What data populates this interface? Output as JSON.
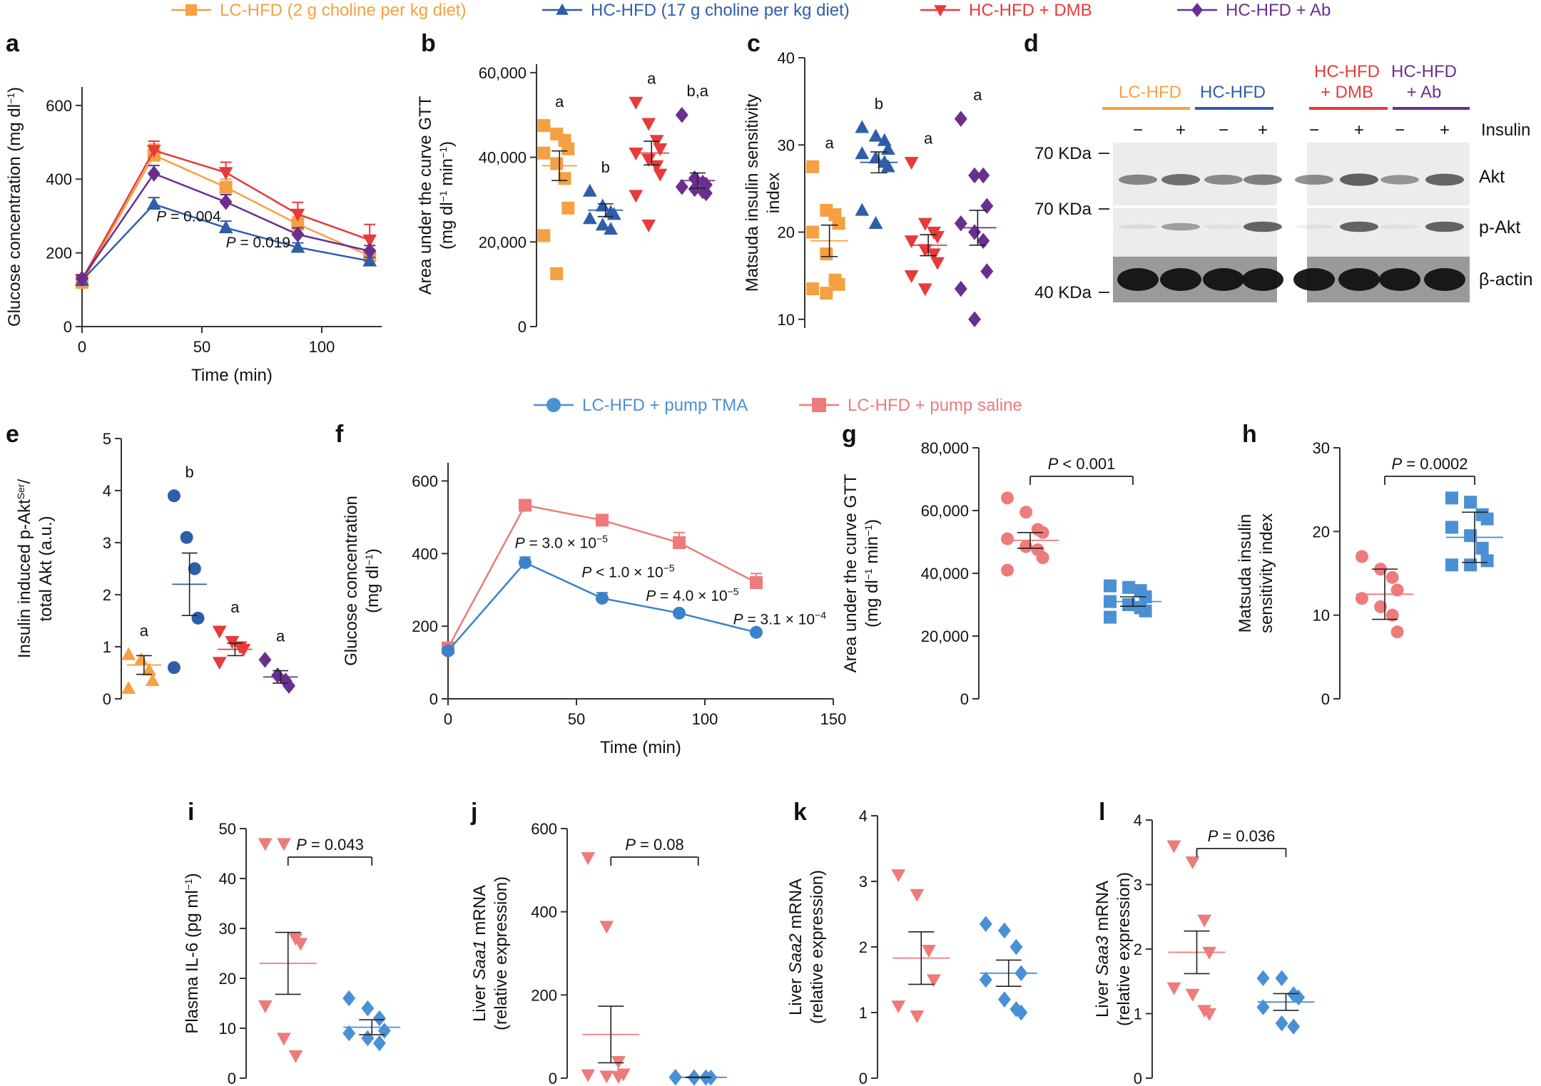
{
  "colors": {
    "lc": "#f5a043",
    "hc": "#2f5ea8",
    "dmb": "#e83a3a",
    "ab": "#6a2f8e",
    "tma": "#4a90d4",
    "saline": "#ee7b7b",
    "tma_point": "#3b82c8",
    "axis": "#333333",
    "blot_bg": "#ececec",
    "blot_band": "#3a3a3a",
    "blot_band_dark": "#111111"
  },
  "legend_top": [
    {
      "label": "LC-HFD (2 g choline per kg diet)",
      "color_key": "lc",
      "marker": "square"
    },
    {
      "label": "HC-HFD (17 g choline per kg diet)",
      "color_key": "hc",
      "marker": "triangle"
    },
    {
      "label": "HC-HFD + DMB",
      "color_key": "dmb",
      "marker": "triangle-down"
    },
    {
      "label": "HC-HFD + Ab",
      "color_key": "ab",
      "marker": "diamond"
    }
  ],
  "legend_mid": [
    {
      "label": "LC-HFD + pump TMA",
      "color_key": "tma",
      "marker": "circle"
    },
    {
      "label": "LC-HFD + pump saline",
      "color_key": "saline",
      "marker": "square"
    }
  ],
  "chart_data": [
    {
      "panel": "a",
      "type": "line",
      "xlabel": "Time (min)",
      "ylabel": "Glucose concentration (mg dl",
      "ylabel_sup": "−1",
      "ylabel_tail": ")",
      "xlim": [
        0,
        125
      ],
      "ylim": [
        0,
        650
      ],
      "xticks": [
        0,
        50,
        100
      ],
      "yticks": [
        0,
        200,
        400,
        600
      ],
      "x": [
        0,
        30,
        60,
        90,
        120
      ],
      "series": [
        {
          "name": "LC-HFD",
          "color_key": "lc",
          "marker": "square",
          "values": [
            120,
            465,
            378,
            278,
            192
          ],
          "err": [
            10,
            30,
            22,
            20,
            18
          ]
        },
        {
          "name": "HC-HFD",
          "color_key": "hc",
          "marker": "triangle",
          "values": [
            125,
            332,
            268,
            215,
            178
          ],
          "err": [
            10,
            18,
            18,
            12,
            10
          ]
        },
        {
          "name": "HC-HFD + DMB",
          "color_key": "dmb",
          "marker": "triangle-down",
          "values": [
            128,
            478,
            418,
            305,
            235
          ],
          "err": [
            10,
            25,
            28,
            32,
            42
          ]
        },
        {
          "name": "HC-HFD + Ab",
          "color_key": "ab",
          "marker": "diamond",
          "values": [
            130,
            415,
            338,
            250,
            205
          ],
          "err": [
            10,
            22,
            20,
            18,
            15
          ]
        }
      ],
      "annotations": [
        {
          "text": "P = 0.004",
          "x": 31,
          "y": 285
        },
        {
          "text": "P = 0.019",
          "x": 60,
          "y": 215
        }
      ]
    },
    {
      "panel": "b",
      "type": "scatter",
      "ylabel": "Area under the curve GTT",
      "ylabel2": "(mg dl",
      "ylabel2_sup": "−1",
      "ylabel2_tail": " min",
      "ylabel2_sup2": "−1",
      "ylabel2_tail2": ")",
      "ylim": [
        0,
        62000
      ],
      "yticks": [
        0,
        20000,
        40000,
        60000
      ],
      "ytick_labels": [
        "0",
        "20,000",
        "40,000",
        "60,000"
      ],
      "groups": [
        {
          "color_key": "lc",
          "marker": "square",
          "letter": "a",
          "mean": 38000,
          "sem": 3500,
          "points": [
            47500,
            45500,
            44000,
            42000,
            41000,
            38500,
            35000,
            28000,
            21500,
            12500
          ]
        },
        {
          "color_key": "hc",
          "marker": "triangle",
          "letter": "b",
          "mean": 27500,
          "sem": 1500,
          "points": [
            32000,
            28500,
            27000,
            26500,
            25500,
            24000,
            23000
          ]
        },
        {
          "color_key": "dmb",
          "marker": "triangle-down",
          "letter": "a",
          "mean": 41000,
          "sem": 2800,
          "points": [
            53000,
            48000,
            44000,
            42000,
            41000,
            39500,
            38000,
            36000,
            31000,
            24000
          ]
        },
        {
          "color_key": "ab",
          "marker": "diamond",
          "letter": "b,a",
          "mean": 34500,
          "sem": 1800,
          "points": [
            50000,
            35000,
            34000,
            33500,
            33000,
            32500,
            32000,
            31500
          ]
        }
      ]
    },
    {
      "panel": "c",
      "type": "scatter",
      "ylabel": "Matsuda insulin sensitivity",
      "ylabel2": "index",
      "ylim": [
        9,
        40
      ],
      "yticks": [
        10,
        20,
        30,
        40
      ],
      "ytick_labels": [
        "10",
        "20",
        "30",
        "40"
      ],
      "groups": [
        {
          "color_key": "lc",
          "marker": "square",
          "letter": "a",
          "mean": 19,
          "sem": 1.8,
          "points": [
            27.5,
            22.5,
            22,
            21,
            20,
            17.5,
            14.5,
            14,
            13.5,
            13
          ]
        },
        {
          "color_key": "hc",
          "marker": "triangle",
          "letter": "b",
          "mean": 28,
          "sem": 1.2,
          "points": [
            32,
            31,
            30.5,
            29.5,
            29,
            28.5,
            28,
            27.5,
            22.5,
            21
          ]
        },
        {
          "color_key": "dmb",
          "marker": "triangle-down",
          "letter": "a",
          "mean": 18.5,
          "sem": 1.2,
          "points": [
            28,
            21,
            20,
            19.5,
            19,
            18,
            17.5,
            16.5,
            15,
            13.5
          ]
        },
        {
          "color_key": "ab",
          "marker": "diamond",
          "letter": "a",
          "mean": 20.5,
          "sem": 2.0,
          "points": [
            33,
            26.5,
            26.5,
            23,
            21,
            20,
            19,
            15.5,
            13.5,
            10
          ]
        }
      ]
    },
    {
      "panel": "e",
      "type": "scatter",
      "ylabel": "Insulin induced p-Akt",
      "ylabel_sup": "Ser",
      "ylabel_tail": "/",
      "ylabel2": "total Akt (a.u.)",
      "ylim": [
        0,
        5
      ],
      "yticks": [
        0,
        1,
        2,
        3,
        4,
        5
      ],
      "ytick_labels": [
        "0",
        "1",
        "2",
        "3",
        "4",
        "5"
      ],
      "groups": [
        {
          "color_key": "lc",
          "marker": "triangle",
          "letter": "a",
          "mean": 0.65,
          "sem": 0.18,
          "points": [
            0.85,
            0.75,
            0.55,
            0.35,
            0.2
          ]
        },
        {
          "color_key": "hc",
          "marker": "circle",
          "letter": "b",
          "mean": 2.2,
          "sem": 0.6,
          "points": [
            3.9,
            3.1,
            2.5,
            1.55,
            0.6
          ]
        },
        {
          "color_key": "dmb",
          "marker": "triangle-down",
          "letter": "a",
          "mean": 0.95,
          "sem": 0.12,
          "points": [
            1.3,
            1.1,
            1.0,
            0.95,
            0.7
          ]
        },
        {
          "color_key": "ab",
          "marker": "diamond",
          "letter": "a",
          "mean": 0.42,
          "sem": 0.12,
          "points": [
            0.75,
            0.45,
            0.35,
            0.25
          ]
        }
      ]
    },
    {
      "panel": "f",
      "type": "line",
      "xlabel": "Time (min)",
      "ylabel": "Glucose concentration",
      "ylabel2": "(mg dl",
      "ylabel2_sup": "−1",
      "ylabel2_tail": ")",
      "xlim": [
        0,
        150
      ],
      "ylim": [
        0,
        650
      ],
      "xticks": [
        0,
        50,
        100,
        150
      ],
      "yticks": [
        0,
        200,
        400,
        600
      ],
      "x": [
        0,
        30,
        60,
        90,
        120
      ],
      "series": [
        {
          "name": "LC-HFD + pump saline",
          "color_key": "saline",
          "marker": "square",
          "values": [
            140,
            533,
            492,
            430,
            320
          ],
          "err": [
            8,
            15,
            15,
            28,
            25
          ]
        },
        {
          "name": "LC-HFD + pump TMA",
          "color_key": "tma_point",
          "marker": "circle",
          "values": [
            132,
            375,
            277,
            236,
            183
          ],
          "err": [
            8,
            15,
            15,
            8,
            6
          ]
        }
      ],
      "annotations": [
        {
          "text": "P = 3.0 × 10",
          "sup": "−5",
          "x": 26,
          "y": 415
        },
        {
          "text": "P < 1.0 × 10",
          "sup": "−5",
          "x": 52,
          "y": 335
        },
        {
          "text": "P = 4.0 × 10",
          "sup": "−5",
          "x": 77,
          "y": 270
        },
        {
          "text": "P = 3.1 × 10",
          "sup": "−4",
          "x": 111,
          "y": 205
        }
      ]
    },
    {
      "panel": "g",
      "type": "scatter",
      "ylabel": "Area under the curve GTT",
      "ylabel2": "(mg dl",
      "ylabel2_sup": "−1",
      "ylabel2_tail": " min",
      "ylabel2_sup2": "−1",
      "ylabel2_tail2": ")",
      "ylim": [
        0,
        80000
      ],
      "yticks": [
        0,
        20000,
        40000,
        60000,
        80000
      ],
      "ytick_labels": [
        "0",
        "20,000",
        "40,000",
        "60,000",
        "80,000"
      ],
      "pvalue": "P < 0.001",
      "groups": [
        {
          "color_key": "saline",
          "marker": "circle",
          "mean": 50500,
          "sem": 2500,
          "points": [
            64000,
            59500,
            54000,
            53000,
            51000,
            48500,
            47500,
            45000,
            41000
          ]
        },
        {
          "color_key": "tma",
          "marker": "square",
          "mean": 31000,
          "sem": 1500,
          "points": [
            36000,
            35500,
            34500,
            32500,
            31000,
            30000,
            29000,
            28000,
            26000
          ]
        }
      ]
    },
    {
      "panel": "h",
      "type": "scatter",
      "ylabel": "Matsuda insulin",
      "ylabel2": "sensitivity index",
      "ylim": [
        0,
        30
      ],
      "yticks": [
        0,
        10,
        20,
        30
      ],
      "ytick_labels": [
        "0",
        "10",
        "20",
        "30"
      ],
      "pvalue": "P = 0.0002",
      "groups": [
        {
          "color_key": "saline",
          "marker": "circle",
          "mean": 12.5,
          "sem": 3,
          "points": [
            17,
            15.5,
            14.5,
            13,
            12,
            11,
            10,
            8
          ]
        },
        {
          "color_key": "tma",
          "marker": "square",
          "mean": 19.3,
          "sem": 3,
          "points": [
            24,
            23.5,
            22,
            21.5,
            20.5,
            19.5,
            18,
            16.5,
            16,
            16
          ]
        }
      ]
    },
    {
      "panel": "i",
      "type": "scatter",
      "ylabel": "Plasma IL-6 (pg ml",
      "ylabel_sup": "−1",
      "ylabel_tail": ")",
      "ylim": [
        0,
        50
      ],
      "yticks": [
        0,
        10,
        20,
        30,
        40,
        50
      ],
      "ytick_labels": [
        "0",
        "10",
        "20",
        "30",
        "40",
        "50"
      ],
      "pvalue": "P = 0.043",
      "groups": [
        {
          "color_key": "saline",
          "marker": "triangle-down",
          "mean": 23,
          "sem": 6.2,
          "points": [
            47,
            47,
            28,
            27,
            14.5,
            8,
            4.5
          ]
        },
        {
          "color_key": "tma",
          "marker": "diamond",
          "mean": 10.2,
          "sem": 1.5,
          "points": [
            16,
            14,
            12,
            9.5,
            9,
            8,
            7
          ]
        }
      ]
    },
    {
      "panel": "j",
      "type": "scatter",
      "ylabel": "Liver ",
      "ylabel_italic": "Saa1",
      "ylabel_tail": " mRNA",
      "ylabel2": "(relative expression)",
      "ylim": [
        0,
        600
      ],
      "yticks": [
        0,
        200,
        400,
        600
      ],
      "ytick_labels": [
        "0",
        "200",
        "400",
        "600"
      ],
      "pvalue": "P = 0.08",
      "groups": [
        {
          "color_key": "saline",
          "marker": "triangle-down",
          "mean": 105,
          "sem": 68,
          "points": [
            530,
            365,
            40,
            10,
            8,
            5,
            4
          ]
        },
        {
          "color_key": "tma",
          "marker": "diamond",
          "mean": 2,
          "sem": 0.5,
          "points": [
            3,
            2,
            2,
            1.5,
            1.5,
            1,
            1
          ]
        }
      ]
    },
    {
      "panel": "k",
      "type": "scatter",
      "ylabel": "Liver ",
      "ylabel_italic": "Saa2",
      "ylabel_tail": " mRNA",
      "ylabel2": "(relative expression)",
      "ylim": [
        0,
        4
      ],
      "yticks": [
        0,
        1,
        2,
        3,
        4
      ],
      "ytick_labels": [
        "0",
        "1",
        "2",
        "3",
        "4"
      ],
      "groups": [
        {
          "color_key": "saline",
          "marker": "triangle-down",
          "mean": 1.83,
          "sem": 0.4,
          "points": [
            3.1,
            2.8,
            1.95,
            1.5,
            1.1,
            0.95
          ]
        },
        {
          "color_key": "tma",
          "marker": "diamond",
          "mean": 1.6,
          "sem": 0.2,
          "points": [
            2.35,
            2.25,
            2.0,
            1.6,
            1.5,
            1.2,
            1.05,
            1.0
          ]
        }
      ]
    },
    {
      "panel": "l",
      "type": "scatter",
      "ylabel": "Liver ",
      "ylabel_italic": "Saa3",
      "ylabel_tail": " mRNA",
      "ylabel2": "(relative expression)",
      "ylim": [
        0,
        4
      ],
      "yticks": [
        0,
        1,
        2,
        3,
        4
      ],
      "ytick_labels": [
        "0",
        "1",
        "2",
        "3",
        "4"
      ],
      "pvalue": "P = 0.036",
      "groups": [
        {
          "color_key": "saline",
          "marker": "triangle-down",
          "mean": 1.95,
          "sem": 0.33,
          "points": [
            3.6,
            3.35,
            2.45,
            1.95,
            1.4,
            1.3,
            1.05,
            1.0
          ]
        },
        {
          "color_key": "tma",
          "marker": "diamond",
          "mean": 1.18,
          "sem": 0.13,
          "points": [
            1.55,
            1.55,
            1.3,
            1.25,
            1.1,
            0.85,
            0.8
          ]
        }
      ]
    }
  ],
  "blot": {
    "panel": "d",
    "groups": [
      {
        "label": "LC-HFD",
        "color_key": "lc"
      },
      {
        "label": "HC-HFD",
        "color_key": "hc"
      },
      {
        "label": "HC-HFD",
        "label2": "+ DMB",
        "color_key": "dmb"
      },
      {
        "label": "HC-HFD",
        "label2": "+ Ab",
        "color_key": "ab"
      }
    ],
    "lane_signs": [
      "−",
      "+",
      "−",
      "+",
      "−",
      "+",
      "−",
      "+"
    ],
    "insulin_label": "Insulin",
    "markers": [
      "70 KDa",
      "70 KDa",
      "40 KDa"
    ],
    "bands": [
      "Akt",
      "p-Akt",
      "β-actin"
    ],
    "akt_intensity": [
      0.55,
      0.75,
      0.5,
      0.6,
      0.5,
      0.9,
      0.4,
      0.85
    ],
    "pakt_intensity": [
      0.05,
      0.45,
      0.03,
      0.85,
      0.03,
      0.85,
      0.03,
      0.85
    ]
  }
}
